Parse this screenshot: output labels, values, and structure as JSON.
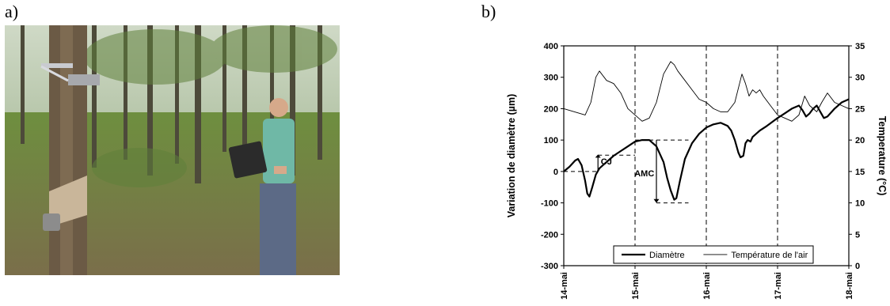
{
  "panels": {
    "a_label": "a)",
    "b_label": "b)"
  },
  "photo": {
    "subject": "man holding laptop next to rubber tree with mounted dendrometer sensor in plantation"
  },
  "chart_data": {
    "type": "line",
    "title": "",
    "xlabel": "",
    "ylabel": "Variation de diamètre (µm)",
    "y2label": "Temperature (°C)",
    "x_tick_labels": [
      "14-mai",
      "15-mai",
      "16-mai",
      "17-mai",
      "18-mai"
    ],
    "xlim": [
      0,
      4
    ],
    "ylim": [
      -300,
      400
    ],
    "y_ticks": [
      -300,
      -200,
      -100,
      0,
      100,
      200,
      300,
      400
    ],
    "y2lim": [
      0,
      35
    ],
    "y2_ticks": [
      0,
      5,
      10,
      15,
      20,
      25,
      30,
      35
    ],
    "grid": "vertical dashed at day boundaries",
    "legend_position": "bottom",
    "series": [
      {
        "name": "Diamètre",
        "axis": "left",
        "x": [
          0,
          0.08,
          0.16,
          0.2,
          0.25,
          0.3,
          0.33,
          0.36,
          0.4,
          0.45,
          0.5,
          0.6,
          0.7,
          0.8,
          0.9,
          1.0,
          1.1,
          1.2,
          1.3,
          1.4,
          1.45,
          1.5,
          1.55,
          1.58,
          1.63,
          1.7,
          1.8,
          1.9,
          2.0,
          2.1,
          2.2,
          2.3,
          2.35,
          2.4,
          2.45,
          2.48,
          2.52,
          2.55,
          2.58,
          2.62,
          2.65,
          2.7,
          2.75,
          2.85,
          3.0,
          3.1,
          3.2,
          3.3,
          3.35,
          3.4,
          3.45,
          3.5,
          3.55,
          3.6,
          3.65,
          3.7,
          3.8,
          3.9,
          4.0
        ],
        "values": [
          0,
          15,
          35,
          40,
          20,
          -30,
          -70,
          -80,
          -50,
          -10,
          10,
          30,
          50,
          65,
          80,
          95,
          100,
          100,
          80,
          30,
          -20,
          -60,
          -90,
          -85,
          -30,
          40,
          90,
          120,
          140,
          150,
          155,
          145,
          130,
          100,
          60,
          45,
          50,
          90,
          100,
          95,
          110,
          120,
          130,
          145,
          170,
          185,
          200,
          210,
          195,
          175,
          185,
          200,
          210,
          190,
          170,
          175,
          200,
          220,
          230
        ]
      },
      {
        "name": "Température de l'air",
        "axis": "right",
        "x": [
          0,
          0.15,
          0.3,
          0.38,
          0.45,
          0.5,
          0.6,
          0.7,
          0.8,
          0.9,
          1.0,
          1.1,
          1.2,
          1.3,
          1.4,
          1.5,
          1.55,
          1.6,
          1.7,
          1.8,
          1.9,
          2.0,
          2.1,
          2.2,
          2.3,
          2.4,
          2.5,
          2.55,
          2.6,
          2.65,
          2.7,
          2.75,
          2.8,
          2.9,
          3.0,
          3.1,
          3.2,
          3.3,
          3.38,
          3.45,
          3.55,
          3.62,
          3.7,
          3.8,
          3.9,
          4.0
        ],
        "values": [
          25,
          24.5,
          24,
          26,
          30,
          31,
          29.5,
          29,
          27.5,
          25,
          24,
          23,
          23.5,
          26,
          30.5,
          32.5,
          32,
          31,
          29.5,
          28,
          26.5,
          26,
          25,
          24.5,
          24.5,
          26,
          30.5,
          29,
          27,
          28,
          27.5,
          28,
          27,
          25.5,
          24,
          23.5,
          23,
          24,
          27,
          25.5,
          24.5,
          26,
          27.5,
          26,
          25.5,
          25
        ]
      }
    ],
    "annotations": [
      {
        "text": "CJ"
      },
      {
        "text": "AMC"
      }
    ]
  }
}
